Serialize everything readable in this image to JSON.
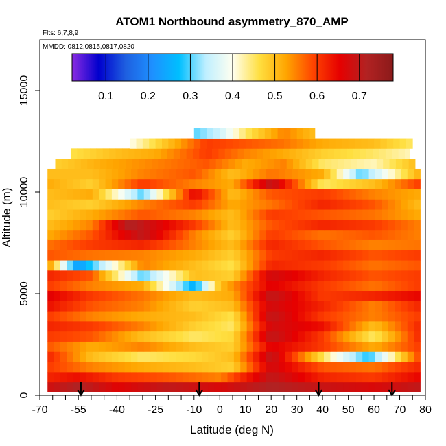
{
  "chart_data": {
    "type": "heatmap",
    "title": "ATOM1 Northbound asymmetry_870_AMP",
    "flights_note": "Flts: 6,7,8,9",
    "dates_note": "MMDD: 0812,0815,0817,0820",
    "xlabel": "Latitude (deg N)",
    "ylabel": "Altitude (m)",
    "xlim": [
      -70,
      80
    ],
    "ylim": [
      0,
      17500
    ],
    "x_ticks": [
      -70,
      -65,
      -60,
      -55,
      -50,
      -45,
      -40,
      -35,
      -30,
      -25,
      -20,
      -15,
      -10,
      -5,
      0,
      5,
      10,
      15,
      20,
      25,
      30,
      35,
      40,
      45,
      50,
      55,
      60,
      65,
      70,
      75,
      80
    ],
    "x_tick_labels": [
      "-70",
      "-55",
      "-40",
      "-25",
      "-10",
      "0",
      "10",
      "20",
      "30",
      "40",
      "50",
      "60",
      "70",
      "80"
    ],
    "x_tick_label_values": [
      -70,
      -55,
      -40,
      -25,
      -10,
      0,
      10,
      20,
      30,
      40,
      50,
      60,
      70,
      80
    ],
    "y_ticks": [
      0,
      5000,
      10000,
      15000
    ],
    "y_tick_labels": [
      "0",
      "5000",
      "10000",
      "15000"
    ],
    "colorbar": {
      "range": [
        0.02,
        0.78
      ],
      "ticks": [
        0.1,
        0.2,
        0.3,
        0.4,
        0.5,
        0.6,
        0.7
      ],
      "tick_labels": [
        "0.1",
        "0.2",
        "0.3",
        "0.4",
        "0.5",
        "0.6",
        "0.7"
      ],
      "colors": [
        "#8a2be2",
        "#0000cd",
        "#1e5fe0",
        "#1e90ff",
        "#00bfff",
        "#bfefff",
        "#fffff0",
        "#ffdf40",
        "#ffa500",
        "#ff4500",
        "#e60000",
        "#b22222",
        "#8b1a1a"
      ]
    },
    "data_extent": {
      "lat_range": [
        -67,
        78
      ],
      "alt_range": [
        0,
        12900
      ]
    },
    "profile_layers": [
      {
        "alt": 400,
        "lat_range": [
          -67,
          78
        ],
        "lats": [
          -67,
          -55,
          -40,
          -20,
          0,
          20,
          40,
          60,
          78
        ],
        "values": [
          0.68,
          0.72,
          0.66,
          0.7,
          0.67,
          0.72,
          0.69,
          0.67,
          0.7
        ]
      },
      {
        "alt": 900,
        "lat_range": [
          -67,
          78
        ],
        "lats": [
          -67,
          -55,
          -40,
          -20,
          0,
          20,
          40,
          60,
          78
        ],
        "values": [
          0.62,
          0.64,
          0.6,
          0.58,
          0.55,
          0.7,
          0.62,
          0.6,
          0.65
        ]
      },
      {
        "alt": 1400,
        "lat_range": [
          -67,
          78
        ],
        "lats": [
          -67,
          -50,
          -30,
          -10,
          5,
          20,
          40,
          60,
          78
        ],
        "values": [
          0.6,
          0.55,
          0.52,
          0.5,
          0.48,
          0.68,
          0.58,
          0.56,
          0.62
        ]
      },
      {
        "alt": 1900,
        "lat_range": [
          -67,
          78
        ],
        "lats": [
          -67,
          -50,
          -30,
          -10,
          5,
          20,
          45,
          58,
          78
        ],
        "values": [
          0.62,
          0.5,
          0.45,
          0.47,
          0.5,
          0.7,
          0.4,
          0.28,
          0.6
        ]
      },
      {
        "alt": 2400,
        "lat_range": [
          -67,
          78
        ],
        "lats": [
          -67,
          -50,
          -30,
          -10,
          5,
          20,
          40,
          60,
          78
        ],
        "values": [
          0.58,
          0.52,
          0.55,
          0.5,
          0.48,
          0.66,
          0.6,
          0.52,
          0.6
        ]
      },
      {
        "alt": 2900,
        "lat_range": [
          -67,
          78
        ],
        "lats": [
          -67,
          -50,
          -30,
          -10,
          5,
          20,
          40,
          60,
          78
        ],
        "values": [
          0.6,
          0.58,
          0.5,
          0.45,
          0.47,
          0.7,
          0.6,
          0.45,
          0.62
        ]
      },
      {
        "alt": 3400,
        "lat_range": [
          -67,
          78
        ],
        "lats": [
          -67,
          -50,
          -30,
          -10,
          5,
          20,
          40,
          60,
          78
        ],
        "values": [
          0.62,
          0.6,
          0.55,
          0.48,
          0.45,
          0.68,
          0.64,
          0.5,
          0.62
        ]
      },
      {
        "alt": 3900,
        "lat_range": [
          -67,
          78
        ],
        "lats": [
          -67,
          -50,
          -30,
          -10,
          5,
          20,
          40,
          60,
          78
        ],
        "values": [
          0.6,
          0.55,
          0.52,
          0.5,
          0.46,
          0.7,
          0.6,
          0.55,
          0.6
        ]
      },
      {
        "alt": 4400,
        "lat_range": [
          -67,
          78
        ],
        "lats": [
          -67,
          -50,
          -30,
          -10,
          5,
          20,
          40,
          60,
          78
        ],
        "values": [
          0.64,
          0.58,
          0.55,
          0.48,
          0.5,
          0.68,
          0.62,
          0.55,
          0.62
        ]
      },
      {
        "alt": 4900,
        "lat_range": [
          -67,
          78
        ],
        "lats": [
          -67,
          -50,
          -30,
          -10,
          5,
          20,
          40,
          60,
          78
        ],
        "values": [
          0.66,
          0.6,
          0.56,
          0.5,
          0.52,
          0.7,
          0.6,
          0.62,
          0.65
        ]
      },
      {
        "alt": 5400,
        "lat_range": [
          -67,
          78
        ],
        "lats": [
          -67,
          -50,
          -30,
          -10,
          0,
          20,
          40,
          60,
          78
        ],
        "values": [
          0.6,
          0.55,
          0.52,
          0.25,
          0.5,
          0.66,
          0.6,
          0.56,
          0.6
        ]
      },
      {
        "alt": 5900,
        "lat_range": [
          -67,
          78
        ],
        "lats": [
          -67,
          -50,
          -30,
          -10,
          5,
          20,
          40,
          60,
          78
        ],
        "values": [
          0.62,
          0.58,
          0.3,
          0.5,
          0.48,
          0.68,
          0.62,
          0.58,
          0.6
        ]
      },
      {
        "alt": 6400,
        "lat_range": [
          -67,
          78
        ],
        "lats": [
          -67,
          -55,
          -30,
          -10,
          5,
          20,
          40,
          60,
          78
        ],
        "values": [
          0.55,
          0.22,
          0.55,
          0.5,
          0.46,
          0.62,
          0.6,
          0.56,
          0.58
        ]
      },
      {
        "alt": 6900,
        "lat_range": [
          -67,
          78
        ],
        "lats": [
          -67,
          -50,
          -30,
          -10,
          5,
          20,
          40,
          60,
          78
        ],
        "values": [
          0.58,
          0.56,
          0.55,
          0.52,
          0.48,
          0.6,
          0.62,
          0.58,
          0.6
        ]
      },
      {
        "alt": 7400,
        "lat_range": [
          -67,
          78
        ],
        "lats": [
          -67,
          -50,
          -30,
          -10,
          5,
          20,
          40,
          60,
          78
        ],
        "values": [
          0.56,
          0.6,
          0.62,
          0.55,
          0.5,
          0.62,
          0.58,
          0.55,
          0.56
        ]
      },
      {
        "alt": 7900,
        "lat_range": [
          -67,
          78
        ],
        "lats": [
          -67,
          -50,
          -30,
          -10,
          5,
          20,
          40,
          60,
          78
        ],
        "values": [
          0.52,
          0.58,
          0.7,
          0.55,
          0.48,
          0.6,
          0.56,
          0.58,
          0.55
        ]
      },
      {
        "alt": 8400,
        "lat_range": [
          -67,
          78
        ],
        "lats": [
          -67,
          -50,
          -35,
          -10,
          5,
          20,
          40,
          60,
          78
        ],
        "values": [
          0.5,
          0.55,
          0.72,
          0.6,
          0.5,
          0.58,
          0.62,
          0.6,
          0.55
        ]
      },
      {
        "alt": 8900,
        "lat_range": [
          -67,
          78
        ],
        "lats": [
          -67,
          -50,
          -30,
          -10,
          5,
          20,
          40,
          60,
          78
        ],
        "values": [
          0.48,
          0.52,
          0.58,
          0.55,
          0.5,
          0.6,
          0.58,
          0.56,
          0.52
        ]
      },
      {
        "alt": 9400,
        "lat_range": [
          -67,
          78
        ],
        "lats": [
          -67,
          -50,
          -30,
          -10,
          5,
          20,
          40,
          60,
          78
        ],
        "values": [
          0.5,
          0.48,
          0.55,
          0.6,
          0.52,
          0.56,
          0.62,
          0.58,
          0.5
        ]
      },
      {
        "alt": 9900,
        "lat_range": [
          -67,
          78
        ],
        "lats": [
          -67,
          -50,
          -30,
          -10,
          5,
          20,
          40,
          60,
          78
        ],
        "values": [
          0.5,
          0.52,
          0.3,
          0.65,
          0.5,
          0.58,
          0.6,
          0.55,
          0.52
        ]
      },
      {
        "alt": 10400,
        "lat_range": [
          -67,
          78
        ],
        "lats": [
          -67,
          -50,
          -30,
          -10,
          5,
          20,
          40,
          60,
          78
        ],
        "values": [
          0.52,
          0.48,
          0.6,
          0.55,
          0.52,
          0.7,
          0.45,
          0.5,
          0.6
        ]
      },
      {
        "alt": 10900,
        "lat_range": [
          -67,
          78
        ],
        "lats": [
          -67,
          -50,
          -30,
          -10,
          5,
          20,
          40,
          55,
          78
        ],
        "values": [
          0.5,
          0.5,
          0.55,
          0.58,
          0.5,
          0.56,
          0.52,
          0.3,
          0.52
        ]
      },
      {
        "alt": 11400,
        "lat_range": [
          -64,
          76
        ],
        "lats": [
          -64,
          -45,
          -25,
          -5,
          10,
          25,
          40,
          60,
          76
        ],
        "values": [
          0.48,
          0.52,
          0.55,
          0.58,
          0.52,
          0.55,
          0.45,
          0.42,
          0.5
        ]
      },
      {
        "alt": 11900,
        "lat_range": [
          -58,
          74
        ],
        "lats": [
          -58,
          -40,
          -25,
          -5,
          10,
          25,
          40,
          60,
          74
        ],
        "values": [
          0.46,
          0.5,
          0.52,
          0.6,
          0.55,
          0.52,
          0.48,
          0.45,
          0.42
        ]
      },
      {
        "alt": 12400,
        "lat_range": [
          -35,
          75
        ],
        "lats": [
          -35,
          -20,
          -5,
          10,
          25,
          40,
          60,
          75
        ],
        "values": [
          0.4,
          0.5,
          0.6,
          0.58,
          0.56,
          0.52,
          0.5,
          0.45
        ]
      },
      {
        "alt": 12900,
        "lat_range": [
          -10,
          37
        ],
        "lats": [
          -10,
          0,
          10,
          25,
          37
        ],
        "values": [
          0.3,
          0.35,
          0.45,
          0.55,
          0.5
        ]
      }
    ],
    "profile_markers": [
      {
        "label": "profile-marker-1",
        "lat": -54
      },
      {
        "label": "profile-marker-2",
        "lat": -8
      },
      {
        "label": "profile-marker-3",
        "lat": 38.5
      },
      {
        "label": "profile-marker-4",
        "lat": 67
      }
    ]
  }
}
